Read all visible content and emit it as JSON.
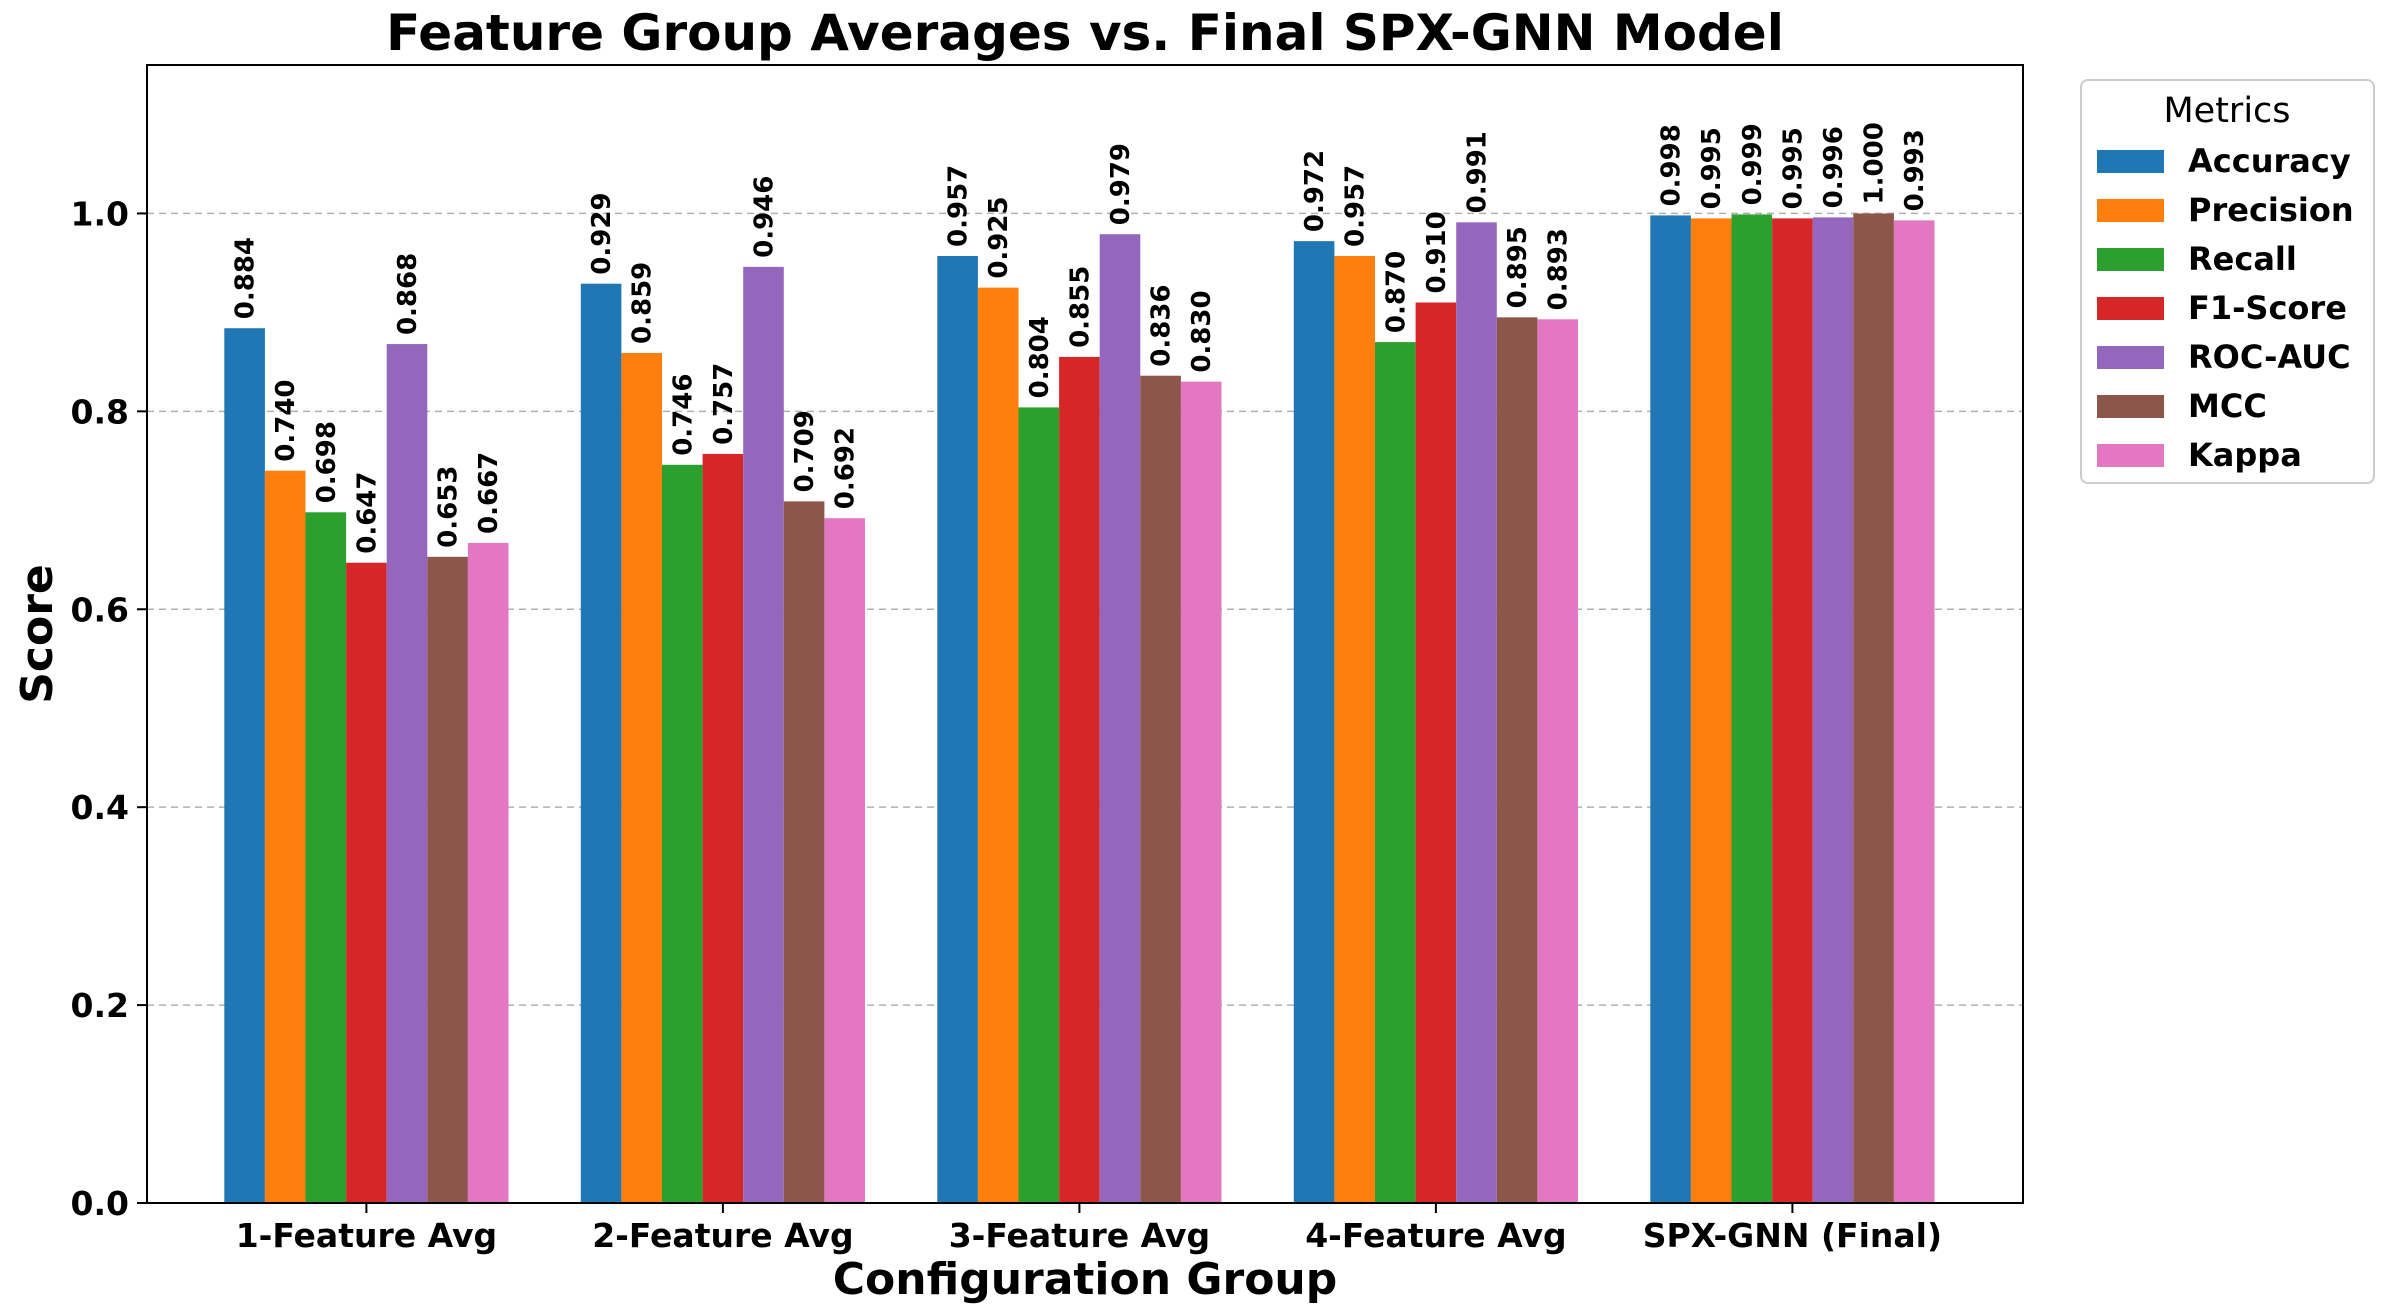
{
  "chart_data": {
    "type": "bar",
    "title": "Feature Group Averages vs. Final SPX-GNN Model",
    "xlabel": "Configuration Group",
    "ylabel": "Score",
    "ylim": [
      0,
      1.15
    ],
    "yticks": [
      "0.0",
      "0.2",
      "0.4",
      "0.6",
      "0.8",
      "1.0"
    ],
    "grid": "y-dashed",
    "legend_position": "outside-right-top",
    "legend_title": "Metrics",
    "categories": [
      "1-Feature Avg",
      "2-Feature Avg",
      "3-Feature Avg",
      "4-Feature Avg",
      "SPX-GNN (Final)"
    ],
    "series": [
      {
        "name": "Accuracy",
        "color": "#1f77b4",
        "values": [
          0.884,
          0.929,
          0.957,
          0.972,
          0.998
        ],
        "labels": [
          "0.884",
          "0.929",
          "0.957",
          "0.972",
          "0.998"
        ]
      },
      {
        "name": "Precision",
        "color": "#ff7f0e",
        "values": [
          0.74,
          0.859,
          0.925,
          0.957,
          0.995
        ],
        "labels": [
          "0.740",
          "0.859",
          "0.925",
          "0.957",
          "0.995"
        ]
      },
      {
        "name": "Recall",
        "color": "#2ca02c",
        "values": [
          0.698,
          0.746,
          0.804,
          0.87,
          0.999
        ],
        "labels": [
          "0.698",
          "0.746",
          "0.804",
          "0.870",
          "0.999"
        ]
      },
      {
        "name": "F1-Score",
        "color": "#d62728",
        "values": [
          0.647,
          0.757,
          0.855,
          0.91,
          0.995
        ],
        "labels": [
          "0.647",
          "0.757",
          "0.855",
          "0.910",
          "0.995"
        ]
      },
      {
        "name": "ROC-AUC",
        "color": "#9467bd",
        "values": [
          0.868,
          0.946,
          0.979,
          0.991,
          0.996
        ],
        "labels": [
          "0.868",
          "0.946",
          "0.979",
          "0.991",
          "0.996"
        ]
      },
      {
        "name": "MCC",
        "color": "#8c564b",
        "values": [
          0.653,
          0.709,
          0.836,
          0.895,
          1.0
        ],
        "labels": [
          "0.653",
          "0.709",
          "0.836",
          "0.895",
          "1.000"
        ]
      },
      {
        "name": "Kappa",
        "color": "#e377c2",
        "values": [
          0.667,
          0.692,
          0.83,
          0.893,
          0.993
        ],
        "labels": [
          "0.667",
          "0.692",
          "0.830",
          "0.893",
          "0.993"
        ]
      }
    ]
  }
}
